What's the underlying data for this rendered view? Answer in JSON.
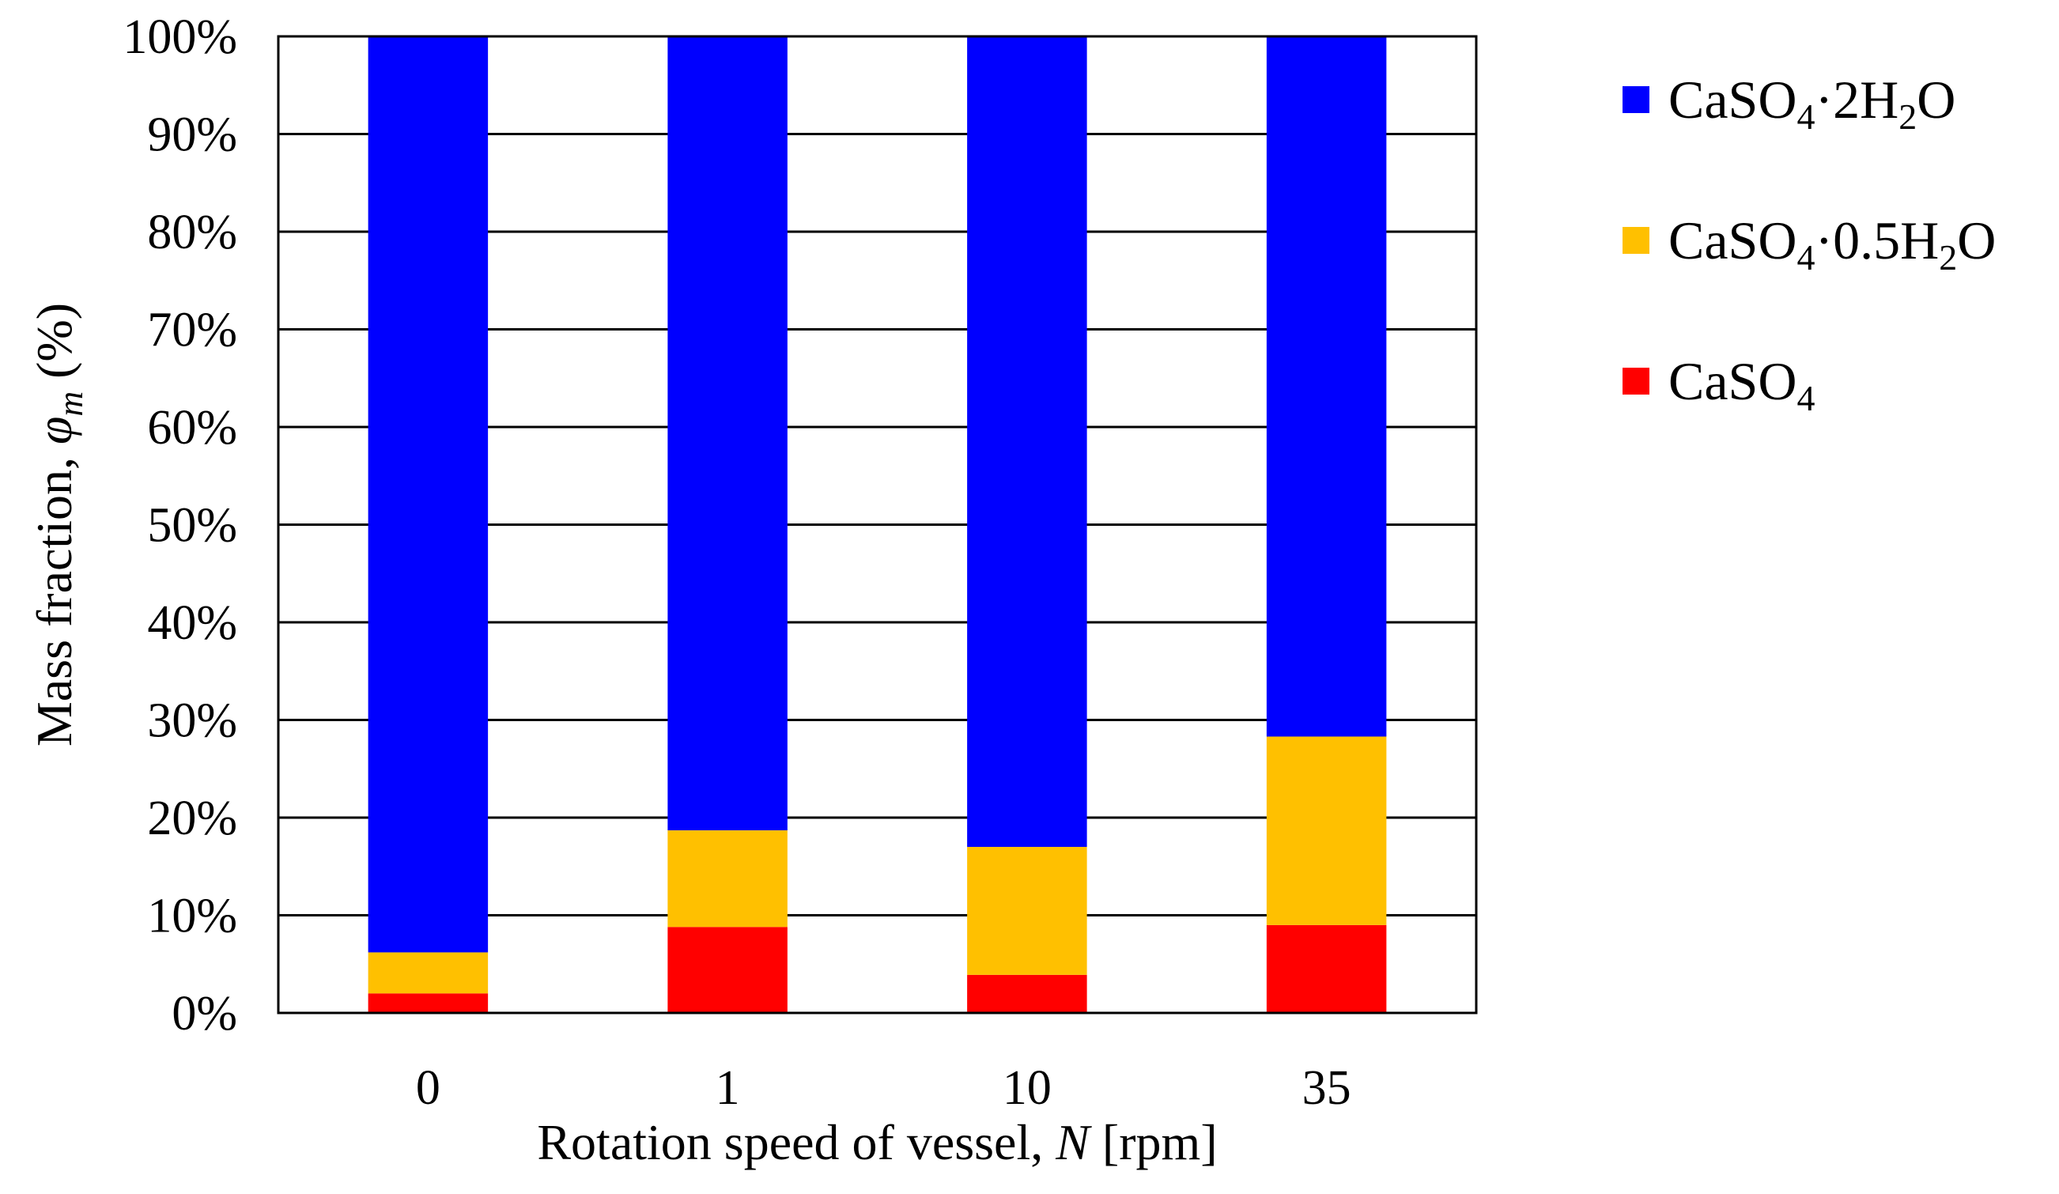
{
  "chart_data": {
    "type": "bar",
    "stacked": true,
    "categories": [
      "0",
      "1",
      "10",
      "35"
    ],
    "series": [
      {
        "name": "CaSO4",
        "base": "CaSO",
        "sub1": "4",
        "mid": "",
        "sub2": "",
        "tail": "",
        "color": "#ff0000",
        "values": [
          2,
          8.8,
          3.9,
          9
        ]
      },
      {
        "name": "CaSO4·0.5H2O",
        "base": "CaSO",
        "sub1": "4",
        "mid": "·0.5H",
        "sub2": "2",
        "tail": "O",
        "color": "#ffc000",
        "values": [
          4.2,
          9.9,
          13.1,
          19.3
        ]
      },
      {
        "name": "CaSO4·2H2O",
        "base": "CaSO",
        "sub1": "4",
        "mid": "·2H",
        "sub2": "2",
        "tail": "O",
        "color": "#0000ff",
        "values": [
          93.8,
          81.3,
          83,
          71.7
        ]
      }
    ],
    "legend_order": [
      2,
      1,
      0
    ],
    "legend_position": "right",
    "yticks": [
      "0%",
      "10%",
      "20%",
      "30%",
      "40%",
      "50%",
      "60%",
      "70%",
      "80%",
      "90%",
      "100%"
    ],
    "ylim": [
      0,
      100
    ],
    "grid": true,
    "xlabel": {
      "pre": "Rotation speed of vessel, ",
      "var": "N",
      "post": " [rpm]"
    },
    "ylabel": {
      "pre": "Mass fraction, ",
      "var": "φ",
      "sub": "m",
      "post": " (%)"
    }
  }
}
